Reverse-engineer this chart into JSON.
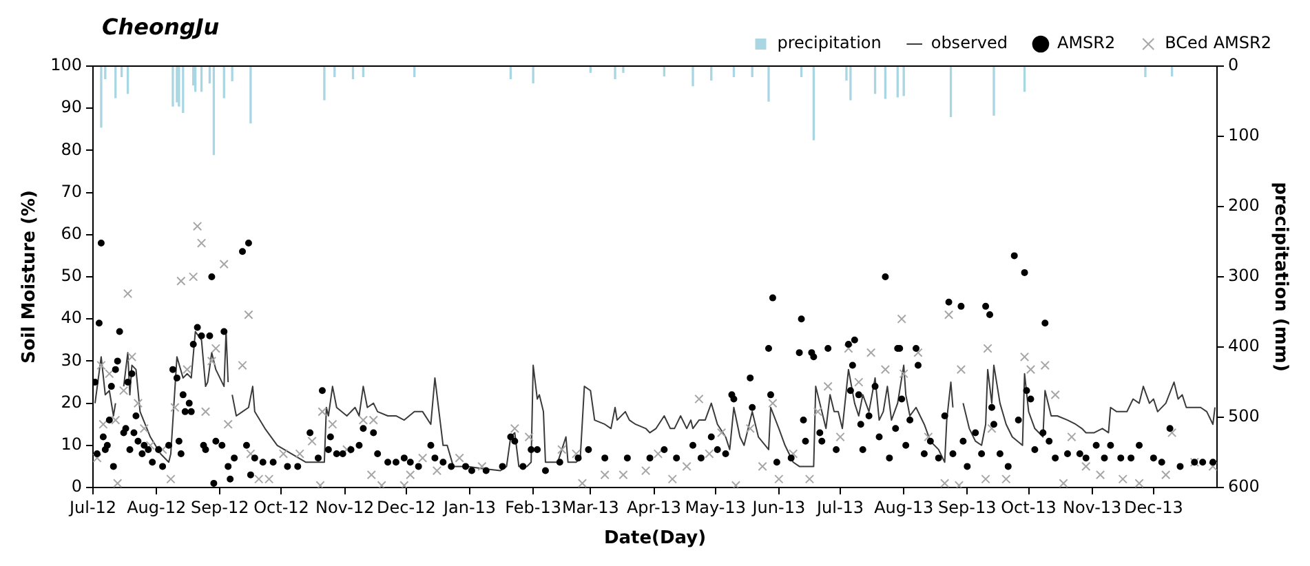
{
  "chart_data": {
    "type": "line",
    "title": "CheongJu",
    "xlabel": "Date(Day)",
    "ylabel": "Soil Moisture (%)",
    "y2label": "precipitation (mm)",
    "xlim": [
      "2012-07-01",
      "2014-01-01"
    ],
    "xticks": [
      {
        "value": "2012-07-01",
        "label": "Jul-12"
      },
      {
        "value": "2012-08-01",
        "label": "Aug-12"
      },
      {
        "value": "2012-09-01",
        "label": "Sep-12"
      },
      {
        "value": "2012-10-01",
        "label": "Oct-12"
      },
      {
        "value": "2012-11-01",
        "label": "Nov-12"
      },
      {
        "value": "2012-12-01",
        "label": "Dec-12"
      },
      {
        "value": "2013-01-01",
        "label": "Jan-13"
      },
      {
        "value": "2013-02-01",
        "label": "Feb-13"
      },
      {
        "value": "2013-03-01",
        "label": "Mar-13"
      },
      {
        "value": "2013-04-01",
        "label": "Apr-13"
      },
      {
        "value": "2013-05-01",
        "label": "May-13"
      },
      {
        "value": "2013-06-01",
        "label": "Jun-13"
      },
      {
        "value": "2013-07-01",
        "label": "Jul-13"
      },
      {
        "value": "2013-08-01",
        "label": "Aug-13"
      },
      {
        "value": "2013-09-01",
        "label": "Sep-13"
      },
      {
        "value": "2013-10-01",
        "label": "Oct-13"
      },
      {
        "value": "2013-11-01",
        "label": "Nov-13"
      },
      {
        "value": "2013-12-01",
        "label": "Dec-13"
      }
    ],
    "ylim": [
      0,
      100
    ],
    "yticks": [
      0,
      10,
      20,
      30,
      40,
      50,
      60,
      70,
      80,
      90,
      100
    ],
    "y2lim": [
      600,
      0
    ],
    "y2ticks": [
      0,
      100,
      200,
      300,
      400,
      500,
      600
    ],
    "legend": "top right",
    "series": [
      {
        "name": "precipitation",
        "type": "bar",
        "axis": "y2",
        "color": "#a9d6e3",
        "x": [
          "2012-07-05",
          "2012-07-07",
          "2012-07-12",
          "2012-07-15",
          "2012-07-18",
          "2012-08-09",
          "2012-08-11",
          "2012-08-12",
          "2012-08-14",
          "2012-08-19",
          "2012-08-20",
          "2012-08-23",
          "2012-08-27",
          "2012-08-29",
          "2012-09-03",
          "2012-09-07",
          "2012-09-16",
          "2012-10-22",
          "2012-10-27",
          "2012-11-05",
          "2012-11-10",
          "2012-12-05",
          "2013-01-21",
          "2013-02-01",
          "2013-03-01",
          "2013-03-13",
          "2013-03-17",
          "2013-04-06",
          "2013-04-20",
          "2013-04-29",
          "2013-05-10",
          "2013-05-19",
          "2013-05-27",
          "2013-06-12",
          "2013-06-18",
          "2013-07-04",
          "2013-07-06",
          "2013-07-18",
          "2013-07-23",
          "2013-07-29",
          "2013-08-01",
          "2013-08-24",
          "2013-09-14",
          "2013-09-29",
          "2013-11-27",
          "2013-12-10"
        ],
        "values": [
          87,
          18,
          45,
          15,
          39,
          57,
          51,
          57,
          66,
          27,
          36,
          36,
          24,
          126,
          45,
          21,
          81,
          48,
          15,
          18,
          15,
          15,
          18,
          24,
          9,
          18,
          9,
          14,
          28,
          20,
          15,
          15,
          50,
          15,
          105,
          20,
          48,
          39,
          46,
          44,
          42,
          72,
          70,
          36,
          15,
          14
        ]
      },
      {
        "name": "observed",
        "marker": "none",
        "line_style": "solid",
        "color": "#3a3a3a",
        "x": [
          "2012-07-02",
          "2012-07-05",
          "2012-07-07",
          "2012-07-09",
          "2012-07-11",
          "2012-07-12",
          "2012-07-13",
          "2012-07-16",
          "2012-07-18",
          "2012-07-19",
          "2012-07-20",
          "2012-07-22",
          "2012-07-24",
          "2012-07-29",
          "2012-08-03",
          "2012-08-07",
          "2012-08-08",
          "2012-08-11",
          "2012-08-14",
          "2012-08-16",
          "2012-08-18",
          "2012-08-20",
          "2012-08-23",
          "2012-08-25",
          "2012-08-26",
          "2012-08-28",
          "2012-08-30",
          "2012-09-03",
          "2012-09-04",
          "2012-09-05",
          "2012-09-06",
          "2012-09-07",
          "2012-09-09",
          "2012-09-12",
          "2012-09-15",
          "2012-09-17",
          "2012-09-18",
          "2012-09-23",
          "2012-09-29",
          "2012-10-06",
          "2012-10-13",
          "2012-10-17",
          "2012-10-22",
          "2012-10-23",
          "2012-10-24",
          "2012-10-26",
          "2012-10-28",
          "2012-11-02",
          "2012-11-06",
          "2012-11-08",
          "2012-11-10",
          "2012-11-12",
          "2012-11-15",
          "2012-11-17",
          "2012-11-22",
          "2012-11-26",
          "2012-11-30",
          "2012-12-05",
          "2012-12-09",
          "2012-12-13",
          "2012-12-15",
          "2012-12-17",
          "2012-12-19",
          "2012-12-21",
          "2012-12-24",
          "2012-12-31",
          "2013-01-07",
          "2013-01-16",
          "2013-01-19",
          "2013-01-21",
          "2013-01-23",
          "2013-01-25",
          "2013-01-29",
          "2013-01-31",
          "2013-02-01",
          "2013-02-03",
          "2013-02-04",
          "2013-02-06",
          "2013-02-07",
          "2013-02-13",
          "2013-02-15",
          "2013-02-17",
          "2013-02-18",
          "2013-02-22",
          "2013-02-24",
          "2013-02-26",
          "2013-03-01",
          "2013-03-03",
          "2013-03-08",
          "2013-03-11",
          "2013-03-13",
          "2013-03-14",
          "2013-03-18",
          "2013-03-20",
          "2013-03-23",
          "2013-03-28",
          "2013-03-30",
          "2013-04-02",
          "2013-04-06",
          "2013-04-09",
          "2013-04-11",
          "2013-04-14",
          "2013-04-17",
          "2013-04-19",
          "2013-04-20",
          "2013-04-23",
          "2013-04-26",
          "2013-04-29",
          "2013-05-02",
          "2013-05-06",
          "2013-05-08",
          "2013-05-10",
          "2013-05-13",
          "2013-05-15",
          "2013-05-19",
          "2013-05-22",
          "2013-05-27",
          "2013-05-28",
          "2013-06-01",
          "2013-06-04",
          "2013-06-08",
          "2013-06-11",
          "2013-06-16",
          "2013-06-18",
          "2013-06-19",
          "2013-06-22",
          "2013-06-24",
          "2013-06-26",
          "2013-06-28",
          "2013-06-30",
          "2013-07-02",
          "2013-07-05",
          "2013-07-08",
          "2013-07-10",
          "2013-07-12",
          "2013-07-15",
          "2013-07-18",
          "2013-07-20",
          "2013-07-22",
          "2013-07-24",
          "2013-07-26",
          "2013-07-29",
          "2013-08-01",
          "2013-08-02",
          "2013-08-04",
          "2013-08-07",
          "2013-08-09",
          "2013-08-11",
          "2013-08-14",
          "2013-08-18",
          "2013-08-21",
          "2013-08-22",
          "2013-08-24",
          "2013-08-25",
          "2013-08-26",
          "2013-08-30",
          "2013-09-02",
          "2013-09-05",
          "2013-09-08",
          "2013-09-10",
          "2013-09-11",
          "2013-09-13",
          "2013-09-14",
          "2013-09-17",
          "2013-09-20",
          "2013-09-23",
          "2013-09-28",
          "2013-09-29",
          "2013-10-01",
          "2013-10-04",
          "2013-10-08",
          "2013-10-09",
          "2013-10-12",
          "2013-10-15",
          "2013-10-20",
          "2013-10-24",
          "2013-10-27",
          "2013-10-29",
          "2013-11-02",
          "2013-11-06",
          "2013-11-09",
          "2013-11-10",
          "2013-11-13",
          "2013-11-18",
          "2013-11-21",
          "2013-11-24",
          "2013-11-26",
          "2013-11-29",
          "2013-12-01",
          "2013-12-03",
          "2013-12-07",
          "2013-12-11",
          "2013-12-13",
          "2013-12-15",
          "2013-12-17",
          "2013-12-21",
          "2013-12-24",
          "2013-12-27",
          "2013-12-30",
          "2013-12-31"
        ],
        "values": [
          20,
          31,
          22,
          23,
          17,
          20,
          null,
          24,
          32,
          22,
          29,
          28,
          18,
          12,
          8,
          6,
          8,
          31,
          26,
          27,
          26,
          37,
          35,
          24,
          25,
          32,
          28,
          24,
          37,
          25,
          null,
          22,
          17,
          18,
          19,
          24,
          18,
          14,
          10,
          8,
          6,
          6,
          6,
          19,
          17,
          24,
          19,
          17,
          19,
          17,
          24,
          19,
          20,
          18,
          17,
          17,
          16,
          18,
          18,
          15,
          26,
          18,
          10,
          10,
          5,
          5,
          4.5,
          4,
          5,
          12,
          13,
          5,
          5,
          6,
          29,
          21,
          22,
          18,
          6,
          6,
          9,
          12,
          6,
          6,
          7,
          24,
          23,
          16,
          15,
          14,
          19,
          16,
          18,
          16,
          15,
          14,
          13,
          14,
          17,
          14,
          14,
          17,
          14,
          16,
          14,
          16,
          16,
          20,
          15,
          12,
          9,
          19,
          12,
          10,
          18,
          12,
          9,
          19,
          14,
          10,
          6,
          5,
          5,
          5,
          24,
          18,
          14,
          22,
          18,
          18,
          14,
          28,
          20,
          17,
          22,
          18,
          26,
          16,
          18,
          24,
          16,
          20,
          29,
          22,
          17,
          19,
          17,
          15,
          11,
          9,
          6,
          16,
          25,
          19,
          null,
          20,
          14,
          11,
          10,
          15,
          28,
          20,
          29,
          20,
          15,
          12,
          10,
          27,
          18,
          14,
          12,
          23,
          17,
          17,
          16,
          15,
          14,
          13,
          13,
          14,
          13,
          19,
          18,
          18,
          21,
          20,
          24,
          20,
          21,
          18,
          20,
          25,
          21,
          22,
          19,
          19,
          19,
          18,
          15,
          19
        ]
      },
      {
        "name": "AMSR2",
        "type": "scatter",
        "marker": "circle",
        "color": "#000000",
        "x": [
          "2012-07-02",
          "2012-07-03",
          "2012-07-04",
          "2012-07-05",
          "2012-07-06",
          "2012-07-07",
          "2012-07-08",
          "2012-07-09",
          "2012-07-10",
          "2012-07-11",
          "2012-07-12",
          "2012-07-13",
          "2012-07-14",
          "2012-07-16",
          "2012-07-17",
          "2012-07-18",
          "2012-07-19",
          "2012-07-20",
          "2012-07-21",
          "2012-07-22",
          "2012-07-23",
          "2012-07-25",
          "2012-07-26",
          "2012-07-28",
          "2012-07-30",
          "2012-08-02",
          "2012-08-04",
          "2012-08-07",
          "2012-08-09",
          "2012-08-11",
          "2012-08-12",
          "2012-08-13",
          "2012-08-14",
          "2012-08-15",
          "2012-08-17",
          "2012-08-18",
          "2012-08-19",
          "2012-08-21",
          "2012-08-23",
          "2012-08-24",
          "2012-08-25",
          "2012-08-27",
          "2012-08-28",
          "2012-08-29",
          "2012-08-30",
          "2012-09-02",
          "2012-09-03",
          "2012-09-05",
          "2012-09-06",
          "2012-09-08",
          "2012-09-12",
          "2012-09-14",
          "2012-09-15",
          "2012-09-16",
          "2012-09-18",
          "2012-09-22",
          "2012-09-27",
          "2012-10-04",
          "2012-10-09",
          "2012-10-15",
          "2012-10-19",
          "2012-10-21",
          "2012-10-24",
          "2012-10-25",
          "2012-10-28",
          "2012-10-31",
          "2012-11-04",
          "2012-11-08",
          "2012-11-10",
          "2012-11-15",
          "2012-11-17",
          "2012-11-22",
          "2012-11-26",
          "2012-11-30",
          "2012-12-03",
          "2012-12-07",
          "2012-12-13",
          "2012-12-15",
          "2012-12-19",
          "2012-12-23",
          "2012-12-30",
          "2013-01-02",
          "2013-01-09",
          "2013-01-17",
          "2013-01-21",
          "2013-01-23",
          "2013-01-27",
          "2013-01-31",
          "2013-02-03",
          "2013-02-07",
          "2013-02-14",
          "2013-02-23",
          "2013-02-28",
          "2013-03-08",
          "2013-03-19",
          "2013-03-30",
          "2013-04-06",
          "2013-04-12",
          "2013-04-20",
          "2013-04-24",
          "2013-04-29",
          "2013-05-02",
          "2013-05-06",
          "2013-05-09",
          "2013-05-10",
          "2013-05-18",
          "2013-05-19",
          "2013-05-27",
          "2013-05-28",
          "2013-05-29",
          "2013-05-31",
          "2013-06-07",
          "2013-06-11",
          "2013-06-12",
          "2013-06-13",
          "2013-06-14",
          "2013-06-17",
          "2013-06-18",
          "2013-06-21",
          "2013-06-22",
          "2013-06-25",
          "2013-06-29",
          "2013-07-05",
          "2013-07-06",
          "2013-07-07",
          "2013-07-08",
          "2013-07-10",
          "2013-07-11",
          "2013-07-12",
          "2013-07-15",
          "2013-07-18",
          "2013-07-20",
          "2013-07-23",
          "2013-07-25",
          "2013-07-28",
          "2013-07-29",
          "2013-07-30",
          "2013-07-31",
          "2013-08-02",
          "2013-08-04",
          "2013-08-07",
          "2013-08-08",
          "2013-08-11",
          "2013-08-14",
          "2013-08-18",
          "2013-08-21",
          "2013-08-23",
          "2013-08-25",
          "2013-08-29",
          "2013-08-30",
          "2013-09-01",
          "2013-09-05",
          "2013-09-08",
          "2013-09-10",
          "2013-09-12",
          "2013-09-13",
          "2013-09-14",
          "2013-09-17",
          "2013-09-21",
          "2013-09-24",
          "2013-09-26",
          "2013-09-29",
          "2013-09-30",
          "2013-10-02",
          "2013-10-04",
          "2013-10-08",
          "2013-10-09",
          "2013-10-11",
          "2013-10-14",
          "2013-10-20",
          "2013-10-26",
          "2013-10-29",
          "2013-11-03",
          "2013-11-07",
          "2013-11-10",
          "2013-11-15",
          "2013-11-20",
          "2013-11-24",
          "2013-12-01",
          "2013-12-05",
          "2013-12-09",
          "2013-12-14",
          "2013-12-21",
          "2013-12-25",
          "2013-12-30"
        ],
        "values": [
          25,
          8,
          39,
          58,
          12,
          9,
          10,
          16,
          24,
          5,
          28,
          30,
          37,
          13,
          14,
          25,
          9,
          27,
          13,
          17,
          11,
          8,
          10,
          9,
          6,
          9,
          5,
          10,
          28,
          26,
          11,
          8,
          22,
          18,
          20,
          18,
          34,
          38,
          36,
          10,
          9,
          36,
          50,
          1,
          11,
          10,
          37,
          5,
          2,
          7,
          56,
          10,
          58,
          3,
          7,
          6,
          6,
          5,
          5,
          13,
          7,
          23,
          9,
          12,
          8,
          8,
          9,
          10,
          14,
          13,
          8,
          6,
          6,
          7,
          6,
          5,
          10,
          7,
          6,
          5,
          5,
          4,
          4,
          5,
          12,
          11,
          5,
          9,
          9,
          4,
          6,
          7,
          9,
          7,
          7,
          7,
          9,
          7,
          10,
          7,
          12,
          9,
          8,
          22,
          21,
          26,
          19,
          33,
          22,
          45,
          6,
          7,
          32,
          40,
          16,
          11,
          32,
          31,
          13,
          11,
          33,
          9,
          34,
          23,
          29,
          35,
          22,
          15,
          9,
          17,
          24,
          12,
          50,
          7,
          14,
          33,
          33,
          21,
          10,
          16,
          33,
          29,
          8,
          11,
          7,
          17,
          44,
          8,
          43,
          11,
          5,
          13,
          8,
          43,
          41,
          19,
          15,
          8,
          5,
          55,
          16,
          51,
          23,
          21,
          9,
          13,
          39,
          11,
          7,
          8,
          8,
          7,
          10,
          7,
          10,
          7,
          7,
          10,
          7,
          6,
          14,
          5,
          6,
          6,
          6
        ]
      },
      {
        "name": "BCed AMSR2",
        "type": "scatter",
        "marker": "cross",
        "color": "#a6a6a6",
        "x": [
          "2012-07-03",
          "2012-07-05",
          "2012-07-06",
          "2012-07-09",
          "2012-07-12",
          "2012-07-13",
          "2012-07-16",
          "2012-07-18",
          "2012-07-20",
          "2012-07-23",
          "2012-07-26",
          "2012-07-29",
          "2012-08-04",
          "2012-08-08",
          "2012-08-10",
          "2012-08-13",
          "2012-08-16",
          "2012-08-19",
          "2012-08-21",
          "2012-08-23",
          "2012-08-25",
          "2012-08-28",
          "2012-08-30",
          "2012-09-03",
          "2012-09-05",
          "2012-09-12",
          "2012-09-15",
          "2012-09-16",
          "2012-09-20",
          "2012-09-25",
          "2012-10-02",
          "2012-10-10",
          "2012-10-16",
          "2012-10-20",
          "2012-10-21",
          "2012-10-26",
          "2012-11-02",
          "2012-11-10",
          "2012-11-14",
          "2012-11-15",
          "2012-11-19",
          "2012-11-30",
          "2012-12-03",
          "2012-12-09",
          "2012-12-16",
          "2012-12-27",
          "2013-01-07",
          "2013-01-23",
          "2013-01-30",
          "2013-02-15",
          "2013-02-22",
          "2013-02-25",
          "2013-03-08",
          "2013-03-17",
          "2013-03-28",
          "2013-04-03",
          "2013-04-10",
          "2013-04-17",
          "2013-04-23",
          "2013-04-28",
          "2013-05-04",
          "2013-05-11",
          "2013-05-18",
          "2013-05-24",
          "2013-05-29",
          "2013-06-01",
          "2013-06-08",
          "2013-06-16",
          "2013-06-20",
          "2013-06-25",
          "2013-07-01",
          "2013-07-05",
          "2013-07-10",
          "2013-07-16",
          "2013-07-23",
          "2013-07-31",
          "2013-08-01",
          "2013-08-08",
          "2013-08-13",
          "2013-08-21",
          "2013-08-23",
          "2013-08-28",
          "2013-08-29",
          "2013-09-10",
          "2013-09-11",
          "2013-09-13",
          "2013-09-20",
          "2013-09-29",
          "2013-10-02",
          "2013-10-09",
          "2013-10-14",
          "2013-10-18",
          "2013-10-22",
          "2013-10-29",
          "2013-11-05",
          "2013-11-16",
          "2013-11-24",
          "2013-12-07",
          "2013-12-10",
          "2013-12-21",
          "2013-12-30"
        ],
        "values": [
          7,
          29,
          15,
          27,
          16,
          1,
          23,
          46,
          31,
          20,
          14,
          10,
          9,
          2,
          19,
          49,
          28,
          50,
          62,
          58,
          18,
          30,
          33,
          53,
          15,
          29,
          41,
          8,
          2,
          2,
          8,
          8,
          11,
          0.5,
          18,
          15,
          9,
          16,
          3,
          16,
          0.5,
          0.5,
          3,
          7,
          4,
          7,
          5,
          14,
          12,
          9,
          8,
          1,
          3,
          3,
          4,
          8,
          2,
          5,
          21,
          8,
          13,
          0.5,
          14,
          5,
          20,
          2,
          8,
          2,
          18,
          24,
          12,
          33,
          25,
          32,
          28,
          40,
          27,
          32,
          12,
          1,
          41,
          0.5,
          28,
          2,
          33,
          14,
          2,
          31,
          28,
          29,
          22,
          1,
          12,
          5,
          3,
          2,
          1,
          3,
          13,
          6,
          5
        ]
      }
    ]
  }
}
